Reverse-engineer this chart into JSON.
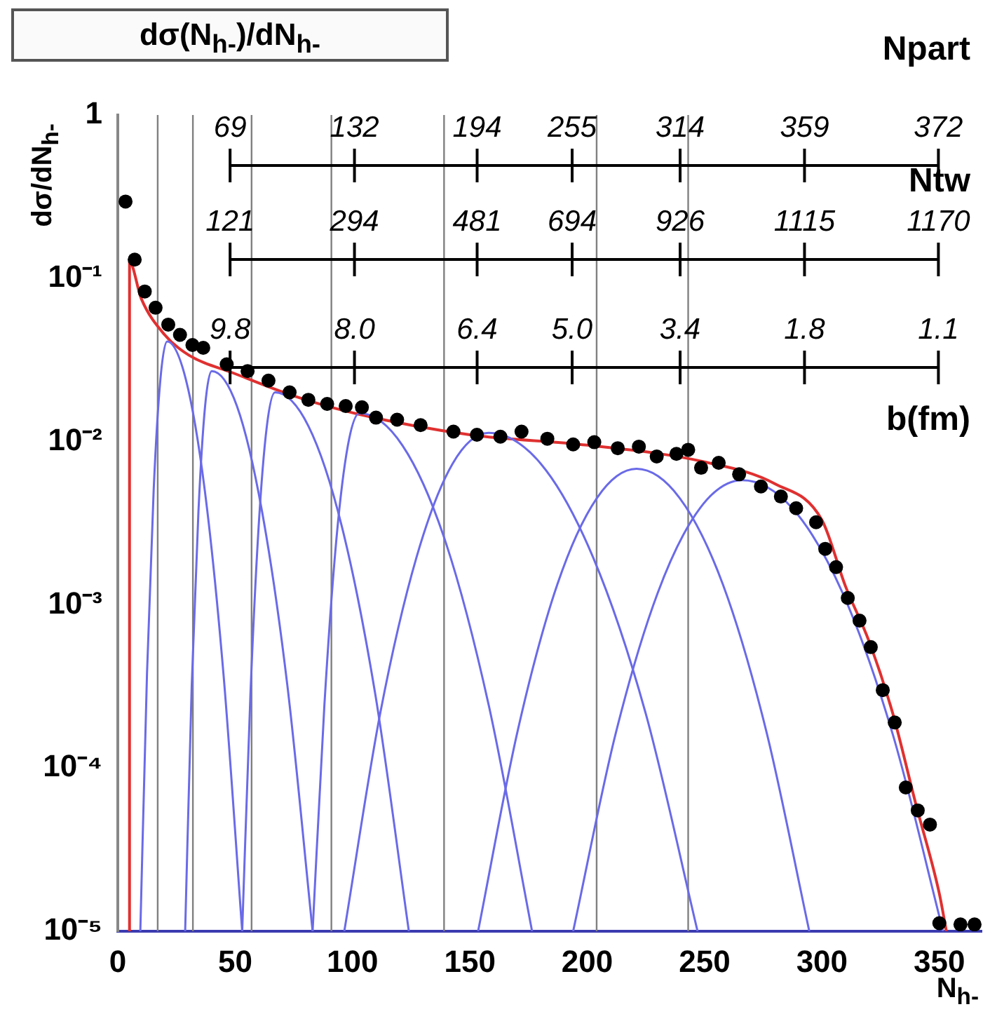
{
  "chart_data": {
    "type": "scatter",
    "title": "dσ(N$_{h-}$)/dN$_{h-}$",
    "ylabel": "dσ/dN$_{h-}$",
    "xlabel": "N$_{h-}$",
    "log": "y",
    "grid": false,
    "legend": false,
    "marker": "circle",
    "line_style": "solid",
    "xlim": [
      0,
      368
    ],
    "xticks": [
      0,
      50,
      100,
      150,
      200,
      250,
      300,
      350
    ],
    "ylim": [
      1e-05,
      1
    ],
    "yticks": [
      {
        "value": 1e-05,
        "label": "10⁻⁵"
      },
      {
        "value": 0.0001,
        "label": "10⁻⁴"
      },
      {
        "value": 0.001,
        "label": "10⁻³"
      },
      {
        "value": 0.01,
        "label": "10⁻²"
      },
      {
        "value": 0.1,
        "label": "10⁻¹"
      },
      {
        "value": 1,
        "label": "1"
      }
    ],
    "annotations": [
      "Npart",
      "Ntw",
      "b(fm)",
      "69",
      "132",
      "194",
      "255",
      "314",
      "359",
      "372",
      "121",
      "294",
      "481",
      "694",
      "926",
      "1115",
      "1170",
      "9.8",
      "8.0",
      "6.4",
      "5.0",
      "3.4",
      "1.8",
      "1.1"
    ],
    "ref_lines": [
      {
        "axis": "x",
        "value": 17,
        "color": "#808080"
      },
      {
        "axis": "x",
        "value": 32,
        "color": "#808080"
      },
      {
        "axis": "x",
        "value": 57,
        "color": "#808080"
      },
      {
        "axis": "x",
        "value": 91,
        "color": "#808080"
      },
      {
        "axis": "x",
        "value": 139,
        "color": "#808080"
      },
      {
        "axis": "x",
        "value": 204,
        "color": "#808080"
      },
      {
        "axis": "x",
        "value": 243,
        "color": "#808080"
      }
    ],
    "series": [
      {
        "type": "line",
        "color": "#6a6ae8",
        "marker": "none",
        "x": [
          9.6,
          12.45,
          15.3,
          18.15,
          21,
          29,
          37,
          45,
          53
        ],
        "values": [
          1e-05,
          0.00038,
          0.0051,
          0.024,
          0.041,
          0.024,
          0.0051,
          0.00038,
          1e-05
        ]
      },
      {
        "type": "line",
        "color": "#6a6ae8",
        "marker": "none",
        "x": [
          28.7,
          31.5,
          34.35,
          37.2,
          40,
          50.75,
          61.5,
          72.25,
          83
        ],
        "values": [
          1e-05,
          0.00032,
          0.0037,
          0.0165,
          0.027,
          0.0165,
          0.0037,
          0.00032,
          1e-05
        ]
      },
      {
        "type": "line",
        "color": "#6a6ae8",
        "marker": "none",
        "x": [
          53,
          56.5,
          60,
          63.5,
          67,
          81.25,
          95.5,
          109.75,
          124
        ],
        "values": [
          1e-05,
          0.00028,
          0.003,
          0.0124,
          0.02,
          0.0124,
          0.003,
          0.00028,
          1e-05
        ]
      },
      {
        "type": "line",
        "color": "#6a6ae8",
        "marker": "none",
        "x": [
          83,
          88,
          93,
          98,
          103,
          121.4,
          139.75,
          158.1,
          176.5
        ],
        "values": [
          1e-05,
          0.00024,
          0.0024,
          0.0094,
          0.0149,
          0.0094,
          0.0024,
          0.00024,
          1e-05
        ]
      },
      {
        "type": "line",
        "color": "#6a6ae8",
        "marker": "none",
        "x": [
          96.5,
          111.9,
          127.25,
          142.6,
          158,
          180.25,
          202.5,
          224.75,
          247
        ],
        "values": [
          1e-05,
          0.00022,
          0.00195,
          0.0073,
          0.0113,
          0.0073,
          0.00195,
          0.00022,
          1e-05
        ]
      },
      {
        "type": "line",
        "color": "#6a6ae8",
        "marker": "none",
        "x": [
          153.5,
          170.4,
          187.25,
          204.1,
          221,
          239.4,
          257.8,
          276.2,
          294.6
        ],
        "values": [
          1e-05,
          0.00017,
          0.00133,
          0.0045,
          0.0068,
          0.0045,
          0.00133,
          0.00017,
          1e-05
        ]
      },
      {
        "type": "line",
        "color": "#6a6ae8",
        "marker": "none",
        "x": [
          194,
          212,
          230,
          248,
          266,
          287.4,
          308.8,
          330.2,
          351.6
        ],
        "values": [
          1e-05,
          0.00016,
          0.00118,
          0.0039,
          0.0058,
          0.0039,
          0.00118,
          0.00016,
          1e-05
        ]
      },
      {
        "type": "line",
        "color": "#e03030",
        "marker": "none",
        "x": [
          5,
          5,
          10,
          20,
          30,
          50,
          75,
          100,
          150,
          200,
          250,
          280,
          300,
          310,
          320,
          330,
          340,
          350,
          353
        ],
        "values": [
          1e-05,
          0.126,
          0.075,
          0.045,
          0.034,
          0.026,
          0.019,
          0.015,
          0.011,
          0.0095,
          0.0075,
          0.0055,
          0.0033,
          0.0013,
          0.0006,
          0.00022,
          6e-05,
          1.7e-05,
          1e-05
        ]
      },
      {
        "type": "scatter",
        "color": "#000000",
        "x": [
          3.3,
          7.2,
          11.5,
          16.1,
          21.5,
          26.5,
          31.8,
          36.4,
          46.4,
          55.3,
          64.2,
          73.2,
          81.2,
          89.2,
          97.1,
          104,
          110,
          119,
          129,
          143,
          153,
          163,
          172,
          183,
          194,
          203,
          213,
          222,
          229.6,
          238,
          243,
          248.5,
          256,
          264.7,
          274,
          282.5,
          289,
          297.5,
          301.4,
          306,
          311,
          316,
          320.8,
          325.9,
          331,
          335.7,
          340.8,
          346,
          350,
          359,
          365
        ],
        "values": [
          0.295,
          0.13,
          0.083,
          0.066,
          0.052,
          0.045,
          0.039,
          0.0375,
          0.0297,
          0.027,
          0.0236,
          0.02,
          0.018,
          0.017,
          0.0165,
          0.0162,
          0.014,
          0.0136,
          0.0126,
          0.0115,
          0.011,
          0.0107,
          0.0115,
          0.0104,
          0.0096,
          0.0099,
          0.0091,
          0.0093,
          0.0081,
          0.0084,
          0.0089,
          0.0069,
          0.0074,
          0.0063,
          0.0053,
          0.0046,
          0.0039,
          0.0032,
          0.0022,
          0.0017,
          0.0011,
          0.0008,
          0.00055,
          0.0003,
          0.00019,
          7.6e-05,
          5.5e-05,
          4.5e-05,
          1.12e-05,
          1.1e-05,
          1.1e-05
        ]
      }
    ]
  }
}
